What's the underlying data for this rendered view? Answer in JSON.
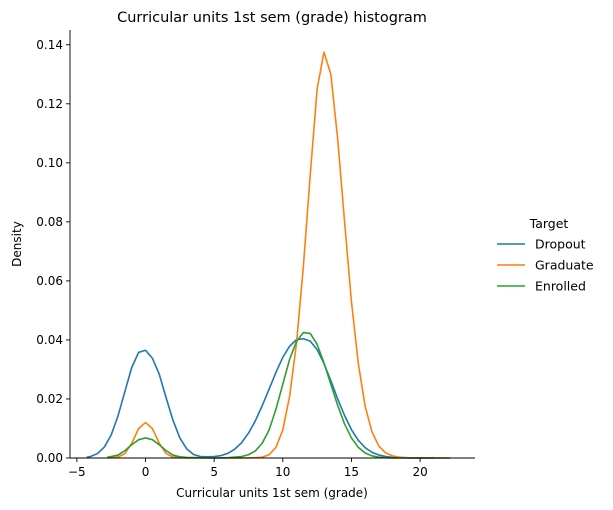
{
  "chart_data": {
    "type": "line",
    "title": "Curricular units 1st sem (grade) histogram",
    "xlabel": "Curricular units 1st sem (grade)",
    "ylabel": "Density",
    "xlim": [
      -5.5,
      24
    ],
    "ylim": [
      0,
      0.145
    ],
    "xticks": [
      -5,
      0,
      5,
      10,
      15,
      20
    ],
    "yticks": [
      0.0,
      0.02,
      0.04,
      0.06,
      0.08,
      0.1,
      0.12,
      0.14
    ],
    "xtick_labels": [
      "−5",
      "0",
      "5",
      "10",
      "15",
      "20"
    ],
    "ytick_labels": [
      "0.00",
      "0.02",
      "0.04",
      "0.06",
      "0.08",
      "0.10",
      "0.12",
      "0.14"
    ],
    "grid": false,
    "legend": {
      "title": "Target",
      "placement": "right"
    },
    "series": [
      {
        "name": "Dropout",
        "color": "#1f77b4",
        "x": [
          -4.3,
          -4,
          -3.5,
          -3,
          -2.5,
          -2,
          -1.5,
          -1,
          -0.5,
          0,
          0.5,
          1,
          1.5,
          2,
          2.5,
          3,
          3.5,
          4,
          4.5,
          5,
          5.5,
          6,
          6.5,
          7,
          7.5,
          8,
          8.5,
          9,
          9.5,
          10,
          10.5,
          11,
          11.5,
          12,
          12.5,
          13,
          13.5,
          14,
          14.5,
          15,
          15.5,
          16,
          16.5,
          17,
          17.5,
          18,
          18.5,
          19,
          19.5,
          20,
          20.5,
          21,
          21.5,
          22.2
        ],
        "y": [
          0.0002,
          0.0005,
          0.0015,
          0.0037,
          0.0078,
          0.0143,
          0.0226,
          0.0307,
          0.0358,
          0.0365,
          0.0338,
          0.0284,
          0.0204,
          0.0128,
          0.0068,
          0.0031,
          0.0012,
          0.0005,
          0.0004,
          0.0005,
          0.0008,
          0.0016,
          0.003,
          0.0052,
          0.0084,
          0.0126,
          0.0177,
          0.0233,
          0.029,
          0.0341,
          0.0379,
          0.0401,
          0.0404,
          0.0396,
          0.0367,
          0.032,
          0.0262,
          0.02,
          0.0144,
          0.0096,
          0.006,
          0.0035,
          0.0019,
          0.001,
          0.0005,
          0.0002,
          0.0001,
          0.0001,
          0.0,
          0.0,
          0.0,
          0.0,
          0.0,
          0.0
        ]
      },
      {
        "name": "Graduate",
        "color": "#ff7f0e",
        "x": [
          -2.8,
          -2,
          -1.5,
          -1,
          -0.5,
          0,
          0.5,
          1,
          1.5,
          2,
          3,
          4,
          5,
          6,
          7,
          8,
          8.5,
          9,
          9.5,
          10,
          10.5,
          11,
          11.5,
          12,
          12.5,
          13,
          13.5,
          14,
          14.5,
          15,
          15.5,
          16,
          16.5,
          17,
          17.5,
          18,
          18.5,
          19,
          20,
          21,
          22
        ],
        "y": [
          0.0,
          0.0003,
          0.0015,
          0.005,
          0.01,
          0.012,
          0.01,
          0.005,
          0.0015,
          0.0003,
          0.0,
          0.0,
          0.0,
          0.0,
          0.0,
          0.0001,
          0.0003,
          0.0011,
          0.0036,
          0.0095,
          0.021,
          0.039,
          0.065,
          0.096,
          0.125,
          0.1375,
          0.13,
          0.108,
          0.08,
          0.053,
          0.032,
          0.0175,
          0.0088,
          0.004,
          0.0017,
          0.0007,
          0.0003,
          0.0001,
          0.0,
          0.0,
          0.0
        ]
      },
      {
        "name": "Enrolled",
        "color": "#2ca02c",
        "x": [
          -2.8,
          -2,
          -1.5,
          -1,
          -0.5,
          0,
          0.5,
          1,
          1.5,
          2,
          2.5,
          3,
          4,
          5,
          6,
          7,
          7.5,
          8,
          8.5,
          9,
          9.5,
          10,
          10.5,
          11,
          11.5,
          12,
          12.5,
          13,
          13.5,
          14,
          14.5,
          15,
          15.5,
          16,
          16.5,
          17,
          17.5,
          18,
          19,
          20,
          21
        ],
        "y": [
          0.0002,
          0.001,
          0.0025,
          0.0045,
          0.0062,
          0.0068,
          0.0062,
          0.0045,
          0.0025,
          0.001,
          0.0004,
          0.0002,
          0.0001,
          0.0,
          0.0001,
          0.0005,
          0.0011,
          0.0024,
          0.005,
          0.0095,
          0.0165,
          0.025,
          0.0335,
          0.0395,
          0.0425,
          0.0422,
          0.0385,
          0.0322,
          0.025,
          0.0178,
          0.0115,
          0.0068,
          0.0036,
          0.0017,
          0.0007,
          0.0003,
          0.0001,
          0.0,
          0.0,
          0.0,
          0.0
        ]
      }
    ]
  }
}
